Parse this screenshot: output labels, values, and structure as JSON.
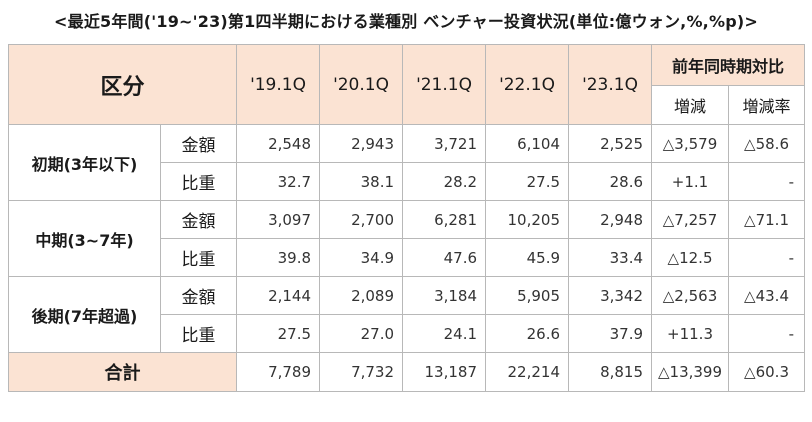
{
  "title": "<最近5年間('19~'23)第1四半期における業種別 ベンチャー投資状況(単位:億ウォン,%,%p)>",
  "header": {
    "category": "区分",
    "years": [
      "'19.1Q",
      "'20.1Q",
      "'21.1Q",
      "'22.1Q",
      "'23.1Q"
    ],
    "yoy": "前年同時期対比",
    "change": "増減",
    "change_rate": "増減率"
  },
  "groups": [
    {
      "name": "初期(3年以下)",
      "rows": [
        {
          "label": "金額",
          "values": [
            "2,548",
            "2,943",
            "3,721",
            "6,104",
            "2,525"
          ],
          "change": "△3,579",
          "rate": "△58.6"
        },
        {
          "label": "比重",
          "values": [
            "32.7",
            "38.1",
            "28.2",
            "27.5",
            "28.6"
          ],
          "change": "+1.1",
          "rate": "-"
        }
      ]
    },
    {
      "name": "中期(3~7年)",
      "rows": [
        {
          "label": "金額",
          "values": [
            "3,097",
            "2,700",
            "6,281",
            "10,205",
            "2,948"
          ],
          "change": "△7,257",
          "rate": "△71.1"
        },
        {
          "label": "比重",
          "values": [
            "39.8",
            "34.9",
            "47.6",
            "45.9",
            "33.4"
          ],
          "change": "△12.5",
          "rate": "-"
        }
      ]
    },
    {
      "name": "後期(7年超過)",
      "rows": [
        {
          "label": "金額",
          "values": [
            "2,144",
            "2,089",
            "3,184",
            "5,905",
            "3,342"
          ],
          "change": "△2,563",
          "rate": "△43.4"
        },
        {
          "label": "比重",
          "values": [
            "27.5",
            "27.0",
            "24.1",
            "26.6",
            "37.9"
          ],
          "change": "+11.3",
          "rate": "-"
        }
      ]
    }
  ],
  "total": {
    "label": "合計",
    "values": [
      "7,789",
      "7,732",
      "13,187",
      "22,214",
      "8,815"
    ],
    "change": "△13,399",
    "rate": "△60.3"
  },
  "colors": {
    "header_bg": "#fbe3d3",
    "border": "#b8b8b8"
  }
}
